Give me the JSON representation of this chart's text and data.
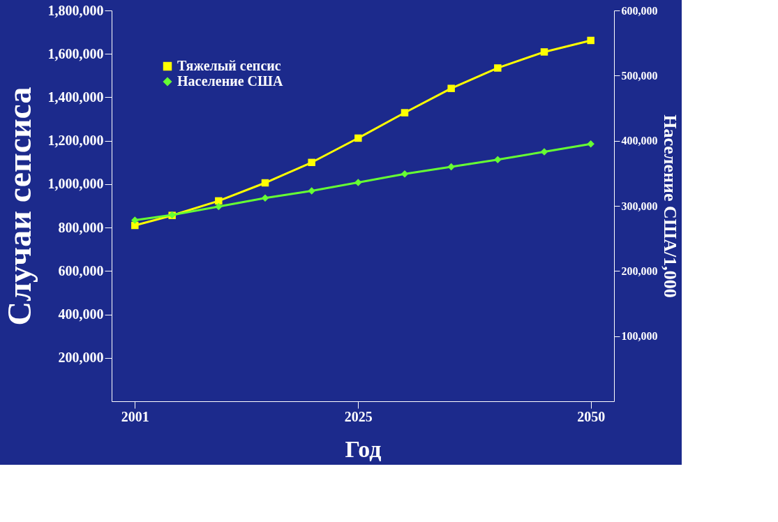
{
  "chart_data": {
    "type": "line",
    "xlabel": "Год",
    "ylabel": "Случаи сепсиса",
    "y2label": "Население США/1,000",
    "x": [
      2001,
      2005,
      2010,
      2015,
      2020,
      2025,
      2030,
      2035,
      2040,
      2045,
      2050
    ],
    "xlim": [
      1998.5,
      2052.5
    ],
    "xticks": [
      2001,
      2025,
      2050
    ],
    "ylim": [
      0,
      1800000
    ],
    "yticks": [
      {
        "value": 200000,
        "label": "200,000"
      },
      {
        "value": 400000,
        "label": "400,000"
      },
      {
        "value": 600000,
        "label": "600,000"
      },
      {
        "value": 800000,
        "label": "800,000"
      },
      {
        "value": 1000000,
        "label": "1,000,000"
      },
      {
        "value": 1200000,
        "label": "1,200,000"
      },
      {
        "value": 1400000,
        "label": "1,400,000"
      },
      {
        "value": 1600000,
        "label": "1,600,000"
      },
      {
        "value": 1800000,
        "label": "1,800,000"
      }
    ],
    "y2lim": [
      0,
      600000
    ],
    "y2ticks": [
      {
        "value": 100000,
        "label": "100,000"
      },
      {
        "value": 200000,
        "label": "200,000"
      },
      {
        "value": 300000,
        "label": "300,000"
      },
      {
        "value": 400000,
        "label": "400,000"
      },
      {
        "value": 500000,
        "label": "500,000"
      },
      {
        "value": 600000,
        "label": "600,000"
      }
    ],
    "series": [
      {
        "name": "Тяжелый сепсис",
        "color": "#ffff00",
        "marker": "square",
        "values": [
          810000,
          856000,
          923000,
          1006000,
          1100000,
          1212000,
          1329000,
          1441000,
          1535000,
          1609000,
          1662000
        ]
      },
      {
        "name": "Население США",
        "color": "#66ff33",
        "marker": "diamond",
        "axis": "y2",
        "values": [
          278000,
          286000,
          299000,
          312000,
          323000,
          336000,
          349000,
          360000,
          371000,
          383000,
          395000
        ]
      }
    ],
    "legend": "top left",
    "grid": false
  }
}
